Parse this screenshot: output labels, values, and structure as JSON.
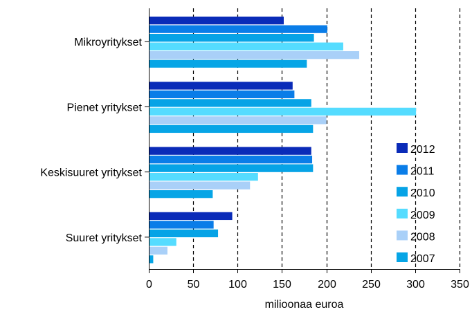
{
  "chart_data": {
    "type": "bar",
    "orientation": "horizontal",
    "title": "",
    "xlabel": "milioonaa euroa",
    "ylabel": "",
    "xlim": [
      0,
      350
    ],
    "xticks": [
      0,
      50,
      100,
      150,
      200,
      250,
      300,
      350
    ],
    "grid": "vertical dashed",
    "legend_position": "right",
    "categories": [
      "Mikroyritykset",
      "Pienet yritykset",
      "Keskisuuret yritykset",
      "Suuret yritykset"
    ],
    "series": [
      {
        "name": "2012",
        "color": "#0a2bb8",
        "values": [
          152,
          162,
          183,
          94
        ]
      },
      {
        "name": "2011",
        "color": "#0a7de8",
        "values": [
          201,
          164,
          184,
          73
        ]
      },
      {
        "name": "2010",
        "color": "#06a3e6",
        "values": [
          186,
          183,
          185,
          78
        ]
      },
      {
        "name": "2009",
        "color": "#55dcff",
        "values": [
          219,
          301,
          123,
          31
        ]
      },
      {
        "name": "2008",
        "color": "#a9d0f8",
        "values": [
          237,
          200,
          114,
          21
        ]
      },
      {
        "name": "2007",
        "color": "#06a5e6",
        "values": [
          178,
          185,
          72,
          5
        ]
      }
    ]
  }
}
